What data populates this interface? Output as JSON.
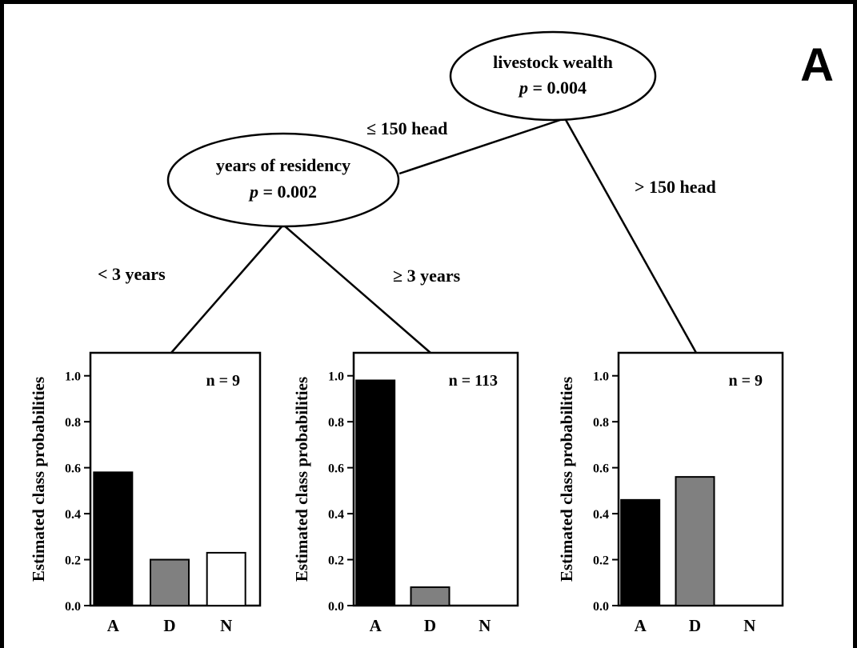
{
  "panel_label": "A",
  "tree": {
    "root": {
      "name": "livestock wealth",
      "p_symbol": "p",
      "p_value": "= 0.004"
    },
    "inner": {
      "name": "years of residency",
      "p_symbol": "p",
      "p_value": "= 0.002"
    },
    "edges": {
      "le150": "≤ 150 head",
      "gt150": "> 150 head",
      "lt3": "< 3 years",
      "ge3": "≥ 3 years"
    }
  },
  "chart_data": [
    {
      "type": "bar",
      "n_label": "n = 9",
      "categories": [
        "A",
        "D",
        "N"
      ],
      "values": [
        0.58,
        0.2,
        0.23
      ],
      "ylabel": "Estimated class probabilities",
      "ylim": [
        0,
        1.1
      ],
      "yticks": [
        "0.0",
        "0.2",
        "0.4",
        "0.6",
        "0.8",
        "1.0"
      ]
    },
    {
      "type": "bar",
      "n_label": "n = 113",
      "categories": [
        "A",
        "D",
        "N"
      ],
      "values": [
        0.98,
        0.08,
        0.0
      ],
      "ylabel": "Estimated class probabilities",
      "ylim": [
        0,
        1.1
      ],
      "yticks": [
        "0.0",
        "0.2",
        "0.4",
        "0.6",
        "0.8",
        "1.0"
      ]
    },
    {
      "type": "bar",
      "n_label": "n = 9",
      "categories": [
        "A",
        "D",
        "N"
      ],
      "values": [
        0.46,
        0.56,
        0.0
      ],
      "ylabel": "Estimated class probabilities",
      "ylim": [
        0,
        1.1
      ],
      "yticks": [
        "0.0",
        "0.2",
        "0.4",
        "0.6",
        "0.8",
        "1.0"
      ]
    }
  ],
  "colors": {
    "A": "#000000",
    "D": "#808080",
    "N": "#ffffff"
  }
}
